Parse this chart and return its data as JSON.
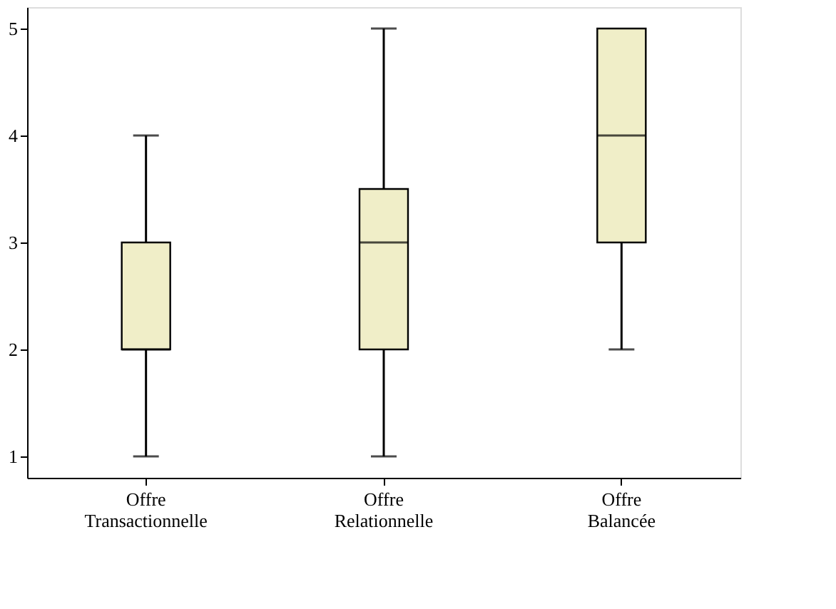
{
  "chart_data": {
    "type": "box",
    "categories": [
      "Offre Transactionnelle",
      "Offre Relationnelle",
      "Offre Balancée"
    ],
    "boxes": [
      {
        "low": 1,
        "q1": 2,
        "median": 2,
        "q3": 3,
        "high": 4
      },
      {
        "low": 1,
        "q1": 2,
        "median": 3,
        "q3": 3.5,
        "high": 5
      },
      {
        "low": 2,
        "q1": 3,
        "median": 4,
        "q3": 5,
        "high": 5
      }
    ],
    "color": "#f0eec8",
    "ylim": [
      0.8,
      5.2
    ],
    "yticks": [
      1,
      2,
      3,
      4,
      5
    ],
    "grid": false
  }
}
